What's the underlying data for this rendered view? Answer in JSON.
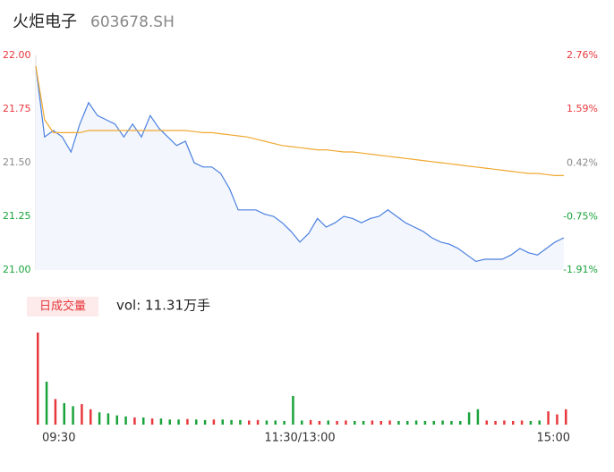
{
  "chart_data": {
    "type": "intraday",
    "title": "火炬电子",
    "subtitle": "603678.SH",
    "ylim": [
      21.0,
      22.0
    ],
    "yticks": [
      {
        "value": 22.0,
        "label": "22.00"
      },
      {
        "value": 21.75,
        "label": "21.75"
      },
      {
        "value": 21.5,
        "label": "21.50"
      },
      {
        "value": 21.25,
        "label": "21.25"
      },
      {
        "value": 21.0,
        "label": "21.00"
      }
    ],
    "y2lim": [
      -1.91,
      2.76
    ],
    "y2ticks": [
      {
        "value": 2.76,
        "label": "2.76%"
      },
      {
        "value": 1.59,
        "label": "1.59%"
      },
      {
        "value": 0.42,
        "label": "0.42%"
      },
      {
        "value": -0.75,
        "label": "-0.75%"
      },
      {
        "value": -1.91,
        "label": "-1.91%"
      }
    ],
    "tick_colors": [
      "#e8383d",
      "#e8383d",
      "#888888",
      "#1aa33b",
      "#1aa33b"
    ],
    "xlim": [
      0,
      240
    ],
    "xticks": [
      {
        "value": 0,
        "label": "09:30"
      },
      {
        "value": 120,
        "label": "11:30/13:00"
      },
      {
        "value": 240,
        "label": "15:00"
      }
    ],
    "x": [
      0,
      4,
      8,
      12,
      16,
      20,
      24,
      28,
      32,
      36,
      40,
      44,
      48,
      52,
      56,
      60,
      64,
      68,
      72,
      76,
      80,
      84,
      88,
      92,
      96,
      100,
      104,
      108,
      112,
      116,
      120,
      124,
      128,
      132,
      136,
      140,
      144,
      148,
      152,
      156,
      160,
      164,
      168,
      172,
      176,
      180,
      184,
      188,
      192,
      196,
      200,
      204,
      208,
      212,
      216,
      220,
      224,
      228,
      232,
      236,
      240
    ],
    "series": [
      {
        "name": "price",
        "color": "#4a80e0",
        "values": [
          21.95,
          21.62,
          21.65,
          21.62,
          21.55,
          21.68,
          21.78,
          21.72,
          21.7,
          21.68,
          21.62,
          21.68,
          21.62,
          21.72,
          21.66,
          21.62,
          21.58,
          21.6,
          21.5,
          21.48,
          21.48,
          21.45,
          21.38,
          21.28,
          21.28,
          21.28,
          21.26,
          21.25,
          21.22,
          21.18,
          21.13,
          21.17,
          21.24,
          21.2,
          21.22,
          21.25,
          21.24,
          21.22,
          21.24,
          21.25,
          21.28,
          21.25,
          21.22,
          21.2,
          21.18,
          21.15,
          21.13,
          21.12,
          21.1,
          21.07,
          21.04,
          21.05,
          21.05,
          21.05,
          21.07,
          21.1,
          21.08,
          21.07,
          21.1,
          21.13,
          21.15
        ]
      },
      {
        "name": "average",
        "color": "#f0a830",
        "values": [
          21.95,
          21.7,
          21.64,
          21.64,
          21.64,
          21.64,
          21.65,
          21.65,
          21.65,
          21.65,
          21.65,
          21.65,
          21.65,
          21.65,
          21.65,
          21.65,
          21.65,
          21.65,
          21.645,
          21.64,
          21.64,
          21.635,
          21.63,
          21.625,
          21.62,
          21.61,
          21.6,
          21.59,
          21.58,
          21.575,
          21.57,
          21.565,
          21.56,
          21.56,
          21.555,
          21.55,
          21.55,
          21.545,
          21.54,
          21.535,
          21.53,
          21.525,
          21.52,
          21.515,
          21.51,
          21.505,
          21.5,
          21.495,
          21.49,
          21.485,
          21.48,
          21.475,
          21.47,
          21.465,
          21.46,
          21.455,
          21.45,
          21.45,
          21.445,
          21.44,
          21.44
        ]
      }
    ],
    "volume": {
      "badge": "日成交量",
      "label": "vol: 11.31万手",
      "up_color": "#e8383d",
      "down_color": "#1aa33b",
      "values": [
        9000,
        4200,
        2500,
        2100,
        1800,
        2000,
        1500,
        1200,
        1100,
        900,
        800,
        700,
        700,
        600,
        600,
        500,
        500,
        550,
        500,
        450,
        500,
        500,
        450,
        450,
        400,
        450,
        400,
        400,
        350,
        2800,
        400,
        450,
        350,
        400,
        350,
        400,
        350,
        350,
        400,
        350,
        400,
        350,
        350,
        400,
        350,
        350,
        400,
        350,
        350,
        1200,
        1500,
        400,
        350,
        400,
        350,
        400,
        350,
        400,
        1300,
        1000,
        1500
      ]
    }
  }
}
